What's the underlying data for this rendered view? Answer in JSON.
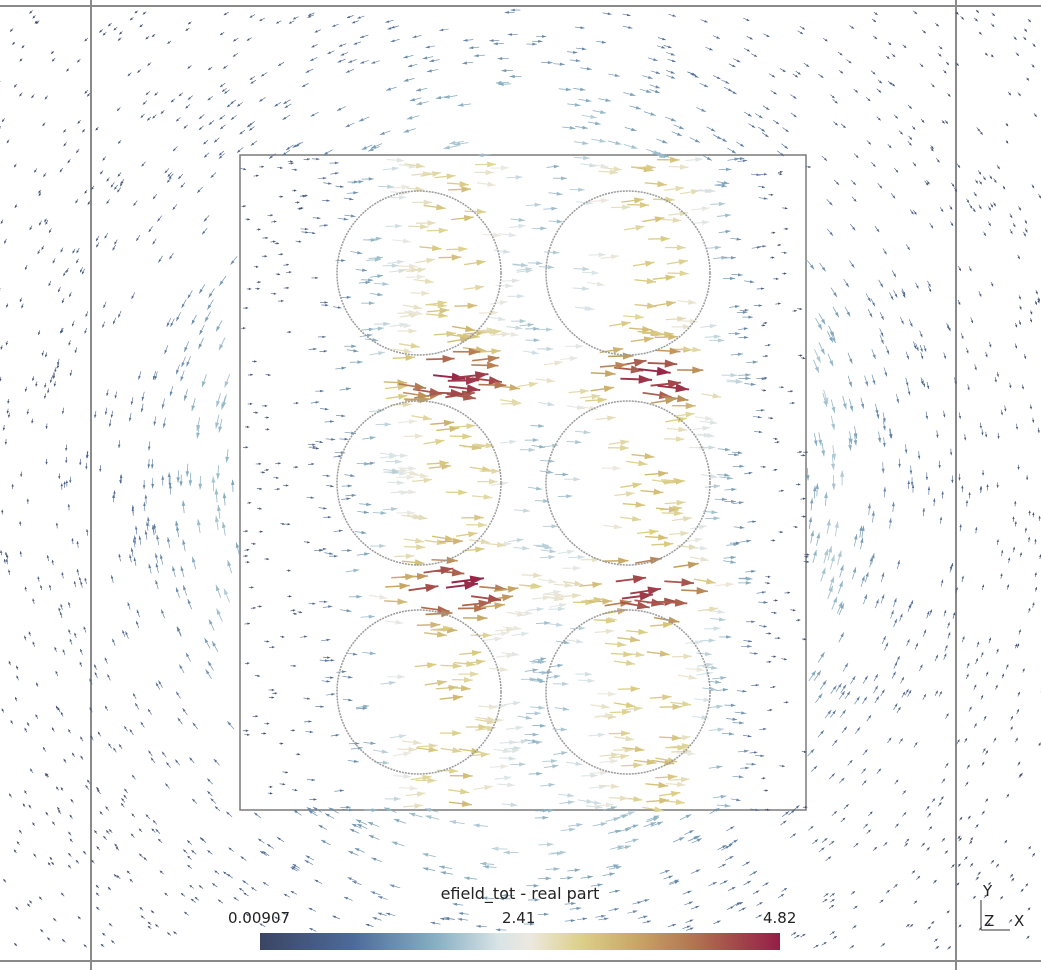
{
  "colorbar": {
    "title": "efield_tot - real part",
    "min_label": "0.00907",
    "mid_label": "2.41",
    "max_label": "4.82"
  },
  "orientation_axes": {
    "y": "Y",
    "z": "Z",
    "x": "X"
  },
  "colors": {
    "frame": "#888888",
    "low": "#3b4564",
    "mid": "#ece8df",
    "high": "#951e48"
  }
}
